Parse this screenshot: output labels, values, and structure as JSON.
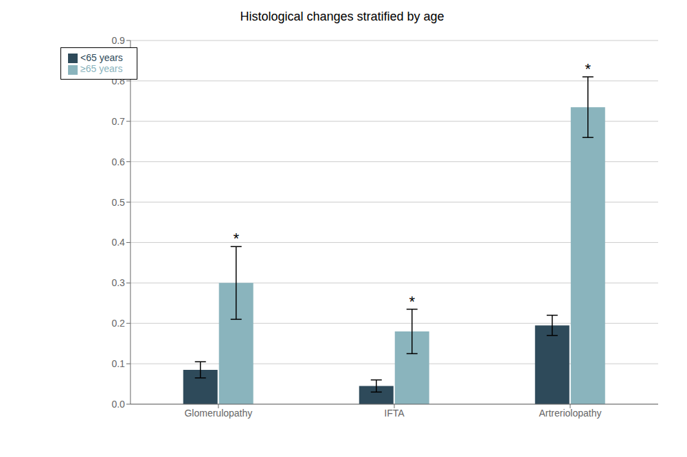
{
  "chart_data": {
    "type": "bar",
    "title": "Histological changes stratified by age",
    "categories": [
      "Glomerulopathy",
      "IFTA",
      "Artreriolopathy"
    ],
    "series": [
      {
        "name": "<65 years",
        "color": "#2e4a5a",
        "values": [
          0.085,
          0.045,
          0.195
        ],
        "errors": [
          0.02,
          0.015,
          0.025
        ]
      },
      {
        "name": "≥65 years",
        "color": "#8ab4bd",
        "values": [
          0.3,
          0.18,
          0.735
        ],
        "errors": [
          0.09,
          0.055,
          0.075
        ]
      }
    ],
    "annotations": [
      {
        "text": "*",
        "category": "Glomerulopathy",
        "series": "≥65 years"
      },
      {
        "text": "*",
        "category": "IFTA",
        "series": "≥65 years"
      },
      {
        "text": "*",
        "category": "Artreriolopathy",
        "series": "≥65 years"
      }
    ],
    "ylim": [
      0.0,
      0.9
    ],
    "yticks": [
      {
        "value": 0.0,
        "label": "0.0"
      },
      0.1,
      0.2,
      0.3,
      0.4,
      0.5,
      0.6,
      0.7,
      0.8,
      0.9
    ],
    "grid": true,
    "legend": "upper left"
  }
}
